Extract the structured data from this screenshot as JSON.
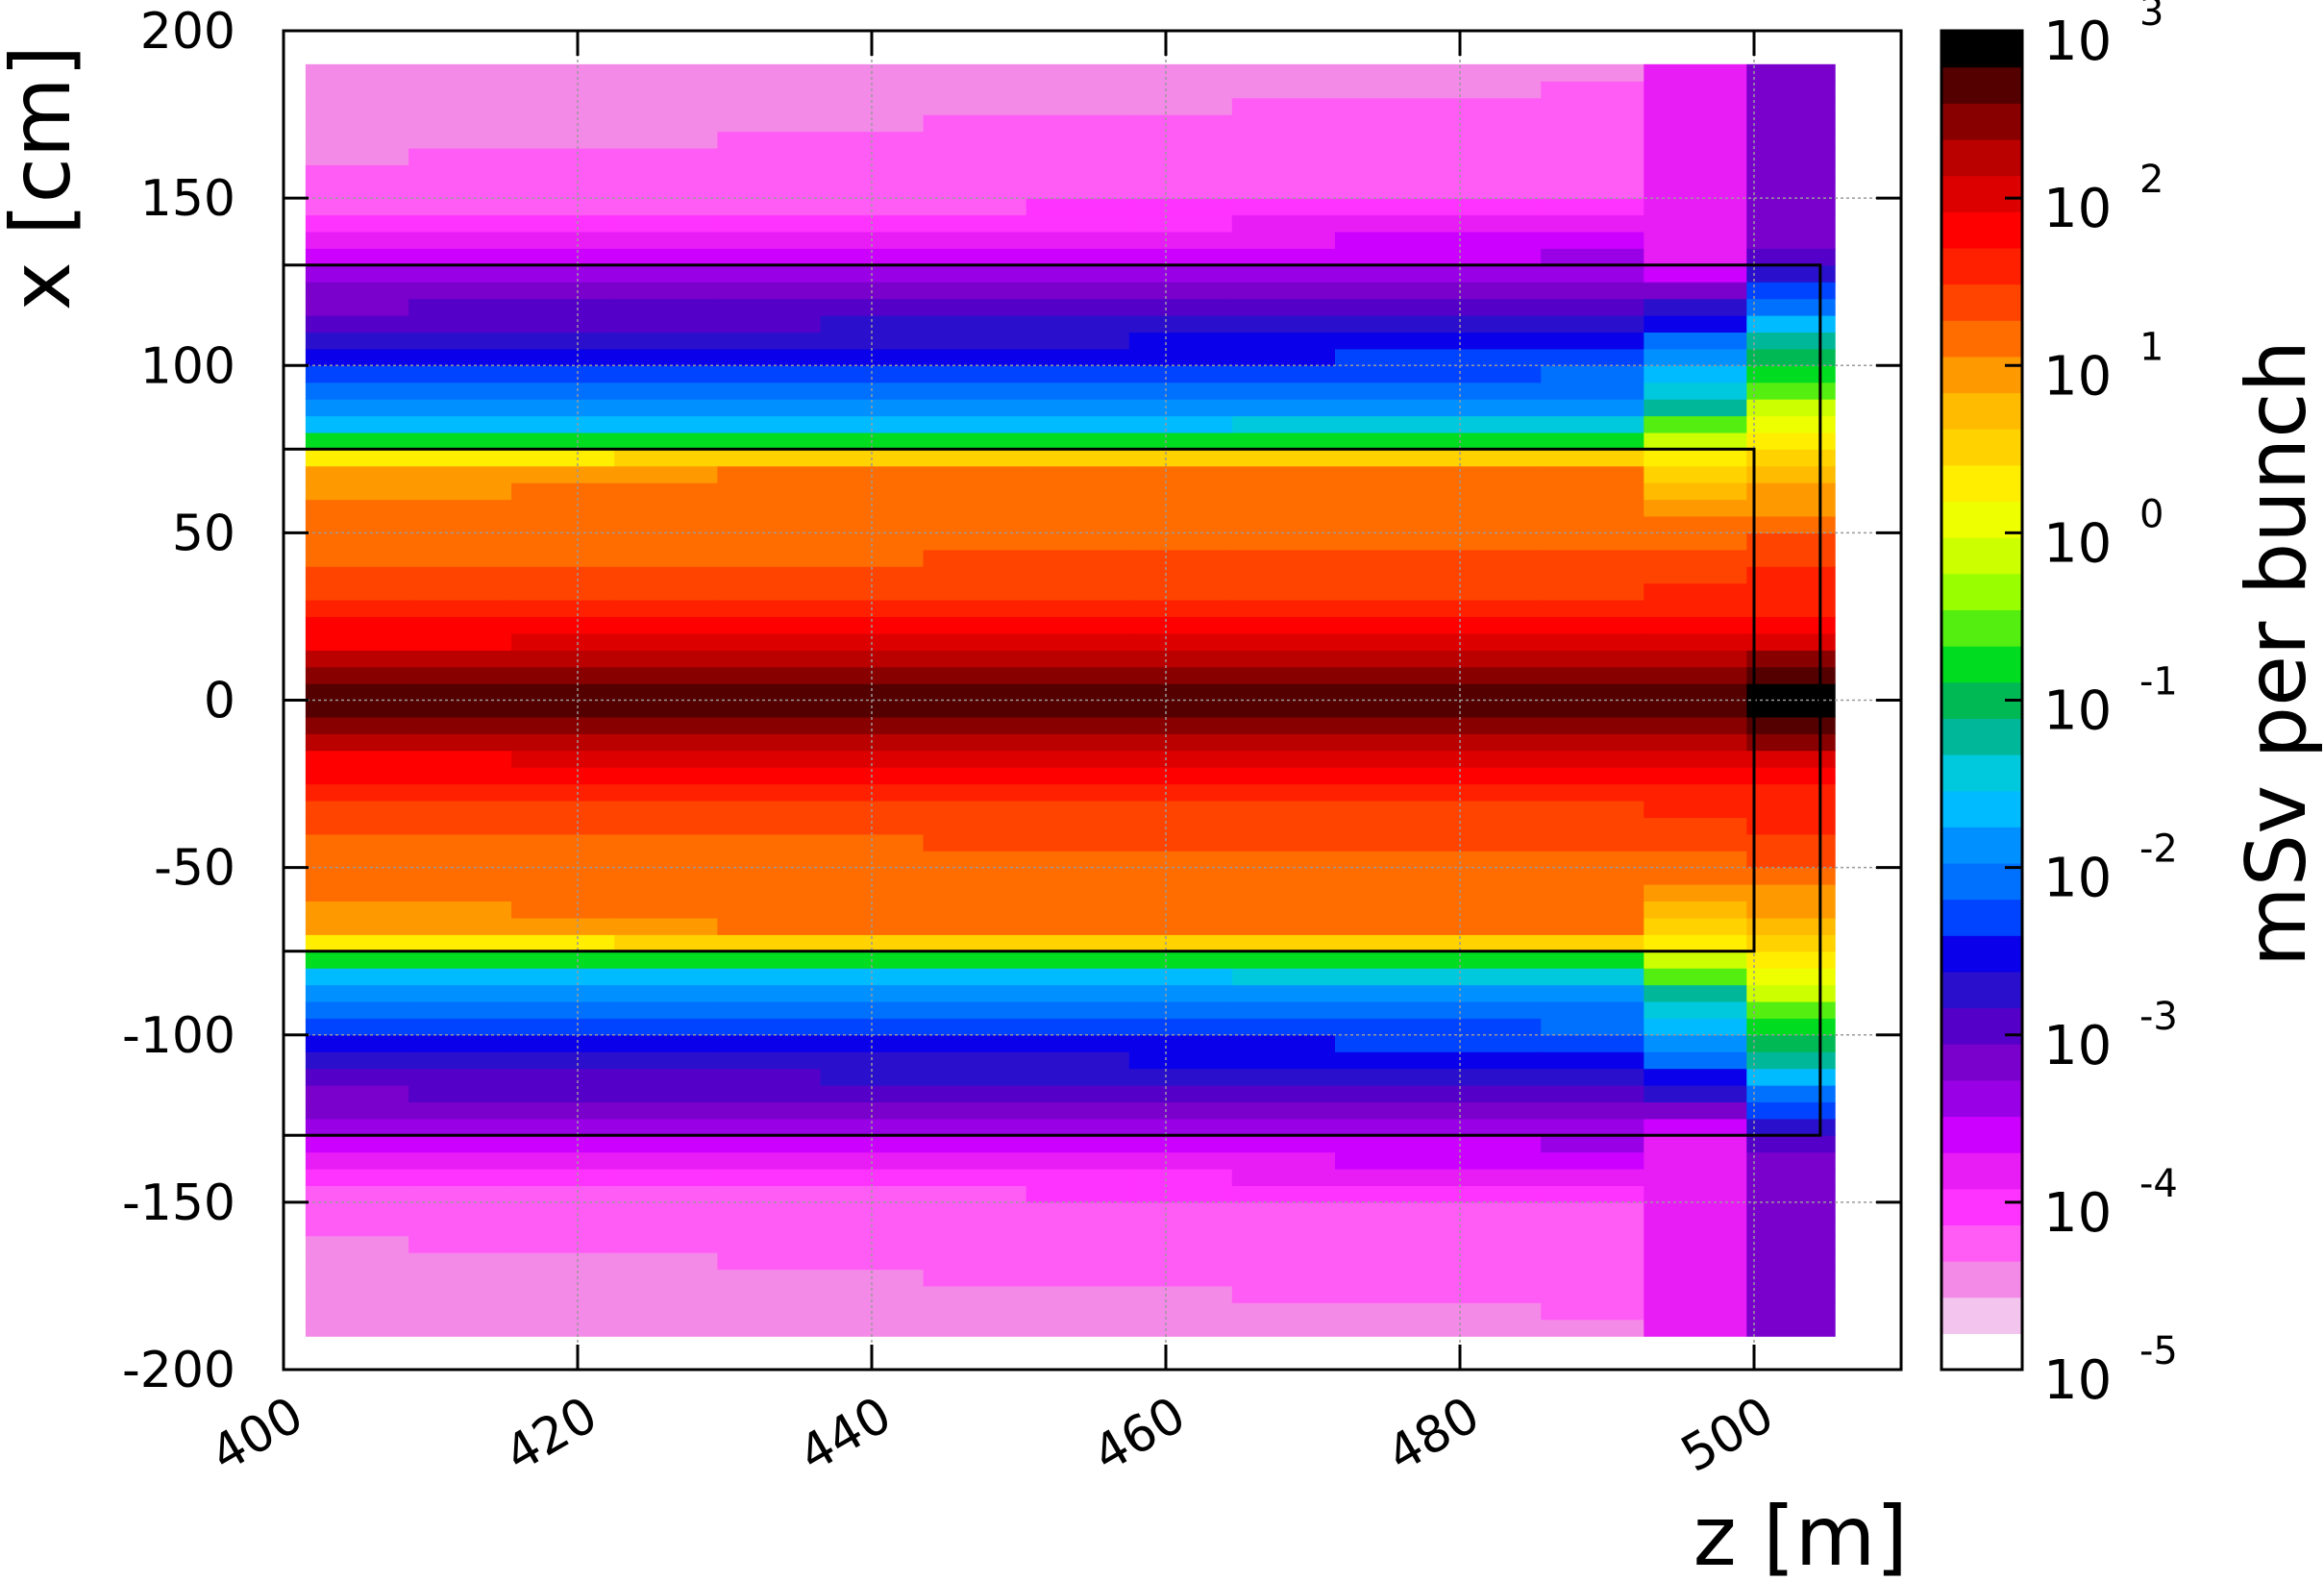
{
  "chart_data": {
    "type": "heatmap",
    "xlabel": "z [m]",
    "ylabel": "x [cm]",
    "colorbar_label": "mSv per bunch",
    "xlim": [
      400,
      510
    ],
    "ylim": [
      -200,
      200
    ],
    "x_ticks": [
      "400",
      "420",
      "440",
      "460",
      "480",
      "500"
    ],
    "y_ticks": [
      "200",
      "150",
      "100",
      "50",
      "0",
      "-50",
      "-100",
      "-150",
      "-200"
    ],
    "colorbar": {
      "scale": "log",
      "range": [
        1e-05,
        1000
      ],
      "ticks": [
        {
          "base": "10",
          "exp": "3"
        },
        {
          "base": "10",
          "exp": "2"
        },
        {
          "base": "10",
          "exp": "1"
        },
        {
          "base": "10",
          "exp": "0"
        },
        {
          "base": "10",
          "exp": "-1"
        },
        {
          "base": "10",
          "exp": "-2"
        },
        {
          "base": "10",
          "exp": "-3"
        },
        {
          "base": "10",
          "exp": "-4"
        },
        {
          "base": "10",
          "exp": "-5"
        }
      ],
      "palette": [
        "#ffffff",
        "#f2c4ee",
        "#f48ae8",
        "#ff5cf5",
        "#ff33ff",
        "#e81cf5",
        "#cc00ff",
        "#9900e6",
        "#7a00cc",
        "#5500c8",
        "#2a10cc",
        "#0a00ea",
        "#0044ff",
        "#0070ff",
        "#0090ff",
        "#00bbff",
        "#00c8dd",
        "#00b899",
        "#00b854",
        "#00dd20",
        "#55ee11",
        "#99ff00",
        "#ccff00",
        "#eeff00",
        "#ffee00",
        "#ffd200",
        "#ffbb00",
        "#ff9900",
        "#ff6d00",
        "#ff4400",
        "#ff2000",
        "#ff0000",
        "#dd0000",
        "#bb0000",
        "#880000",
        "#550000",
        "#000000"
      ]
    },
    "dose_profile": {
      "z_edges": [
        401.5,
        408.5,
        415.5,
        422.5,
        429.5,
        436.5,
        443.5,
        450.5,
        457.5,
        464.5,
        471.5,
        478.5,
        485.5,
        492.5,
        499.5,
        505.5
      ],
      "x_levels_cm": [
        -190,
        -170,
        -150,
        -130,
        -110,
        -90,
        -80,
        -70,
        -50,
        -30,
        -15,
        -5,
        0,
        5,
        15,
        30,
        50,
        70,
        80,
        90,
        110,
        130,
        150,
        170,
        190
      ],
      "log10_dose_core": [
        -4.5,
        -4.4,
        -4.3,
        -3.5,
        -2.8,
        -2.0,
        -1.5,
        1.0,
        1.1,
        1.4,
        2.0,
        2.55,
        2.7,
        2.55,
        2.0,
        1.4,
        1.1,
        1.0,
        -1.5,
        -2.0,
        -2.8,
        -3.5,
        -4.3,
        -4.4,
        -4.5
      ],
      "log10_dose_exit_z495": [
        -3.8,
        -3.8,
        -3.8,
        -3.7,
        -2.3,
        -1.4,
        -0.4,
        0.5,
        1.2,
        1.6,
        2.1,
        2.6,
        2.7,
        2.6,
        2.1,
        1.6,
        1.2,
        0.5,
        -0.4,
        -1.4,
        -2.3,
        -3.7,
        -3.8,
        -3.8,
        -3.8
      ],
      "log10_dose_exit_z502": [
        -3.2,
        -3.2,
        -3.2,
        -3.0,
        -1.4,
        -0.4,
        0.3,
        0.6,
        1.3,
        1.6,
        2.2,
        2.9,
        3.0,
        2.9,
        2.2,
        1.6,
        1.3,
        0.6,
        0.3,
        -0.4,
        -1.4,
        -3.0,
        -3.2,
        -3.2,
        -3.2
      ]
    },
    "outlines": [
      {
        "z": [
          400,
          504.5
        ],
        "x": [
          -130,
          130
        ]
      },
      {
        "z": [
          400,
          500
        ],
        "x": [
          -75,
          75
        ]
      }
    ]
  }
}
